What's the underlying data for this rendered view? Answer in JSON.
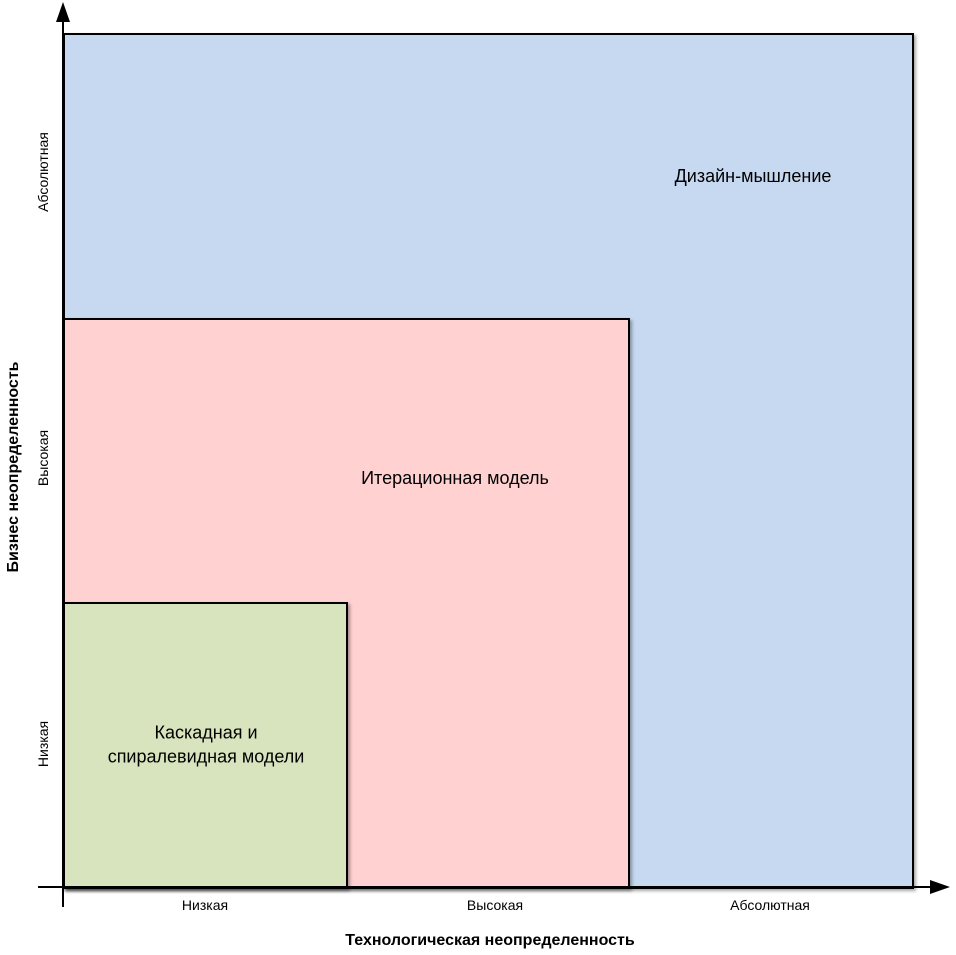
{
  "diagram": {
    "type": "nested-region-matrix",
    "axes": {
      "x": {
        "title": "Технологическая неопределенность",
        "ticks": [
          "Низкая",
          "Высокая",
          "Абсолютная"
        ]
      },
      "y": {
        "title": "Бизнес неопределенность",
        "ticks": [
          "Низкая",
          "Высокая",
          "Абсолютная"
        ]
      }
    },
    "regions": [
      {
        "name": "design-thinking",
        "label": "Дизайн-мышление",
        "fill": "#c6d9f1",
        "x_extent": "Абсолютная",
        "y_extent": "Абсолютная"
      },
      {
        "name": "iterative-model",
        "label": "Итерационная модель",
        "fill": "#ffd1d1",
        "x_extent": "Высокая",
        "y_extent": "Высокая"
      },
      {
        "name": "waterfall-spiral",
        "label": "Каскадная и спиралевидная модели",
        "fill": "#d7e4bd",
        "x_extent": "Низкая",
        "y_extent": "Низкая"
      }
    ],
    "colors": {
      "border": "#000000",
      "text": "#000000",
      "background": "#ffffff"
    }
  }
}
